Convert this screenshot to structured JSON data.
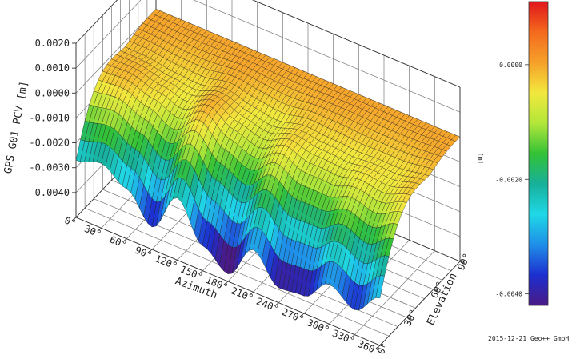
{
  "chart_data": {
    "type": "surface3d",
    "z_label": "GPS G01 PCV [m]",
    "x_label": "Azimuth",
    "y_label": "Elevation",
    "colorbar_label": "[m]",
    "z_ticks": [
      "0.0020",
      "0.0010",
      "0.0000",
      "-0.0010",
      "-0.0020",
      "-0.0030",
      "-0.0040"
    ],
    "z_tick_values": [
      0.002,
      0.001,
      0.0,
      -0.001,
      -0.002,
      -0.003,
      -0.004
    ],
    "x_ticks": [
      "0°",
      "30°",
      "60°",
      "90°",
      "120°",
      "150°",
      "180°",
      "210°",
      "240°",
      "270°",
      "300°",
      "330°",
      "360°"
    ],
    "x_tick_values": [
      0,
      30,
      60,
      90,
      120,
      150,
      180,
      210,
      240,
      270,
      300,
      330,
      360
    ],
    "y_ticks": [
      "0°",
      "30°",
      "60°",
      "90°"
    ],
    "y_tick_values": [
      0,
      30,
      60,
      90
    ],
    "zlim": [
      -0.005,
      0.002
    ],
    "xlim": [
      0,
      360
    ],
    "ylim": [
      0,
      90
    ],
    "colorbar_ticks": [
      "0.0000",
      "-0.0020",
      "-0.0040"
    ],
    "colorbar_tick_values": [
      0.0,
      -0.002,
      -0.004
    ],
    "colorbar_range": [
      -0.0042,
      0.0011
    ],
    "colormap": [
      "#e0151b",
      "#f46a1d",
      "#f6a02a",
      "#f2e83d",
      "#b2e63a",
      "#33c236",
      "#17b09a",
      "#1fd8e6",
      "#1f8fe8",
      "#1c2fd0",
      "#4a1a86"
    ],
    "elevation_profile": [
      {
        "elevation": 0,
        "azimuth": [
          0,
          30,
          60,
          90,
          120,
          150,
          180,
          210,
          240,
          270,
          300,
          330,
          360
        ],
        "pcv": [
          -0.0027,
          -0.0024,
          -0.003,
          -0.0041,
          -0.0025,
          -0.004,
          -0.0047,
          -0.0033,
          -0.0044,
          -0.0043,
          -0.0034,
          -0.004,
          -0.0031
        ]
      },
      {
        "elevation": 90,
        "pcv": [
          0.0,
          0.0,
          0.0,
          0.0,
          0.0,
          0.0,
          0.0,
          0.0,
          0.0,
          0.0,
          0.0,
          0.0,
          0.0
        ]
      }
    ],
    "grid": true
  },
  "footer": {
    "credit": "2015-12-21 Geo++ GmbH"
  }
}
